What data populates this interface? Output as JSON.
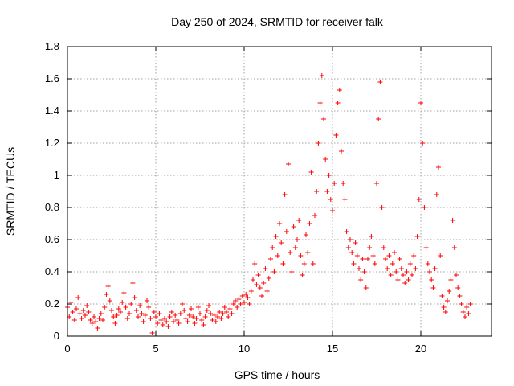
{
  "chart_data": {
    "type": "scatter",
    "title": "Day 250 of 2024, SRMTID for receiver falk",
    "xlabel": "GPS time / hours",
    "ylabel": "SRMTID / TECUs",
    "xlim": [
      0,
      24
    ],
    "ylim": [
      0,
      1.8
    ],
    "xticks": [
      0,
      5,
      10,
      15,
      20
    ],
    "xtick_labels": [
      "0",
      "5",
      "10",
      "15",
      "20"
    ],
    "yticks": [
      0,
      0.2,
      0.4,
      0.6,
      0.8,
      1.0,
      1.2,
      1.4,
      1.6,
      1.8
    ],
    "ytick_labels": [
      "0",
      "0.2",
      "0.4",
      "0.6",
      "0.8",
      "1",
      "1.2",
      "1.4",
      "1.6",
      "1.8"
    ],
    "grid": true,
    "marker": "plus",
    "series": [
      {
        "name": "SRMTID",
        "color": "#ff0000",
        "points": [
          [
            0.0,
            0.18
          ],
          [
            0.1,
            0.12
          ],
          [
            0.2,
            0.21
          ],
          [
            0.3,
            0.15
          ],
          [
            0.4,
            0.1
          ],
          [
            0.5,
            0.17
          ],
          [
            0.6,
            0.24
          ],
          [
            0.7,
            0.14
          ],
          [
            0.8,
            0.11
          ],
          [
            0.9,
            0.16
          ],
          [
            1.0,
            0.13
          ],
          [
            1.1,
            0.19
          ],
          [
            1.2,
            0.15
          ],
          [
            1.3,
            0.1
          ],
          [
            1.4,
            0.08
          ],
          [
            1.5,
            0.12
          ],
          [
            1.6,
            0.09
          ],
          [
            1.7,
            0.05
          ],
          [
            1.8,
            0.11
          ],
          [
            1.9,
            0.14
          ],
          [
            2.0,
            0.1
          ],
          [
            2.1,
            0.18
          ],
          [
            2.2,
            0.26
          ],
          [
            2.3,
            0.31
          ],
          [
            2.4,
            0.22
          ],
          [
            2.5,
            0.16
          ],
          [
            2.6,
            0.12
          ],
          [
            2.7,
            0.08
          ],
          [
            2.8,
            0.13
          ],
          [
            2.9,
            0.17
          ],
          [
            3.0,
            0.15
          ],
          [
            3.1,
            0.21
          ],
          [
            3.2,
            0.27
          ],
          [
            3.3,
            0.18
          ],
          [
            3.4,
            0.11
          ],
          [
            3.5,
            0.14
          ],
          [
            3.6,
            0.2
          ],
          [
            3.7,
            0.33
          ],
          [
            3.8,
            0.24
          ],
          [
            3.9,
            0.16
          ],
          [
            4.0,
            0.12
          ],
          [
            4.1,
            0.19
          ],
          [
            4.2,
            0.14
          ],
          [
            4.3,
            0.09
          ],
          [
            4.4,
            0.13
          ],
          [
            4.5,
            0.22
          ],
          [
            4.6,
            0.18
          ],
          [
            4.7,
            0.11
          ],
          [
            4.8,
            0.02
          ],
          [
            4.9,
            0.15
          ],
          [
            5.0,
            0.12
          ],
          [
            5.1,
            0.08
          ],
          [
            5.2,
            0.14
          ],
          [
            5.3,
            0.1
          ],
          [
            5.4,
            0.07
          ],
          [
            5.5,
            0.11
          ],
          [
            5.6,
            0.09
          ],
          [
            5.7,
            0.06
          ],
          [
            5.8,
            0.12
          ],
          [
            5.9,
            0.15
          ],
          [
            6.0,
            0.09
          ],
          [
            6.1,
            0.13
          ],
          [
            6.2,
            0.1
          ],
          [
            6.3,
            0.08
          ],
          [
            6.4,
            0.14
          ],
          [
            6.5,
            0.2
          ],
          [
            6.6,
            0.16
          ],
          [
            6.7,
            0.11
          ],
          [
            6.8,
            0.09
          ],
          [
            6.9,
            0.13
          ],
          [
            7.0,
            0.17
          ],
          [
            7.1,
            0.12
          ],
          [
            7.2,
            0.08
          ],
          [
            7.3,
            0.11
          ],
          [
            7.4,
            0.18
          ],
          [
            7.5,
            0.14
          ],
          [
            7.6,
            0.1
          ],
          [
            7.7,
            0.07
          ],
          [
            7.8,
            0.12
          ],
          [
            7.9,
            0.16
          ],
          [
            8.0,
            0.19
          ],
          [
            8.1,
            0.14
          ],
          [
            8.2,
            0.1
          ],
          [
            8.3,
            0.13
          ],
          [
            8.4,
            0.09
          ],
          [
            8.5,
            0.12
          ],
          [
            8.6,
            0.15
          ],
          [
            8.7,
            0.11
          ],
          [
            8.8,
            0.14
          ],
          [
            8.9,
            0.18
          ],
          [
            9.0,
            0.15
          ],
          [
            9.1,
            0.12
          ],
          [
            9.2,
            0.17
          ],
          [
            9.3,
            0.14
          ],
          [
            9.4,
            0.2
          ],
          [
            9.5,
            0.22
          ],
          [
            9.6,
            0.18
          ],
          [
            9.7,
            0.23
          ],
          [
            9.8,
            0.2
          ],
          [
            9.9,
            0.25
          ],
          [
            10.0,
            0.21
          ],
          [
            10.1,
            0.26
          ],
          [
            10.2,
            0.24
          ],
          [
            10.3,
            0.2
          ],
          [
            10.4,
            0.28
          ],
          [
            10.5,
            0.35
          ],
          [
            10.6,
            0.45
          ],
          [
            10.7,
            0.32
          ],
          [
            10.8,
            0.38
          ],
          [
            10.9,
            0.3
          ],
          [
            11.0,
            0.25
          ],
          [
            11.1,
            0.33
          ],
          [
            11.2,
            0.42
          ],
          [
            11.3,
            0.28
          ],
          [
            11.4,
            0.36
          ],
          [
            11.5,
            0.48
          ],
          [
            11.6,
            0.55
          ],
          [
            11.7,
            0.4
          ],
          [
            11.8,
            0.62
          ],
          [
            11.9,
            0.5
          ],
          [
            12.0,
            0.7
          ],
          [
            12.1,
            0.58
          ],
          [
            12.2,
            0.45
          ],
          [
            12.3,
            0.88
          ],
          [
            12.4,
            0.65
          ],
          [
            12.5,
            1.07
          ],
          [
            12.6,
            0.52
          ],
          [
            12.7,
            0.4
          ],
          [
            12.8,
            0.68
          ],
          [
            12.9,
            0.55
          ],
          [
            13.0,
            0.6
          ],
          [
            13.1,
            0.72
          ],
          [
            13.2,
            0.5
          ],
          [
            13.3,
            0.38
          ],
          [
            13.4,
            0.45
          ],
          [
            13.5,
            0.63
          ],
          [
            13.6,
            0.52
          ],
          [
            13.7,
            0.7
          ],
          [
            13.8,
            1.02
          ],
          [
            13.9,
            0.45
          ],
          [
            14.0,
            0.75
          ],
          [
            14.1,
            0.9
          ],
          [
            14.2,
            1.2
          ],
          [
            14.3,
            1.45
          ],
          [
            14.4,
            1.62
          ],
          [
            14.5,
            1.35
          ],
          [
            14.6,
            1.1
          ],
          [
            14.7,
            0.9
          ],
          [
            14.8,
            1.0
          ],
          [
            14.9,
            0.85
          ],
          [
            15.0,
            0.78
          ],
          [
            15.1,
            0.95
          ],
          [
            15.2,
            1.25
          ],
          [
            15.3,
            1.45
          ],
          [
            15.4,
            1.53
          ],
          [
            15.5,
            1.15
          ],
          [
            15.6,
            0.95
          ],
          [
            15.7,
            0.85
          ],
          [
            15.8,
            0.65
          ],
          [
            15.9,
            0.55
          ],
          [
            16.0,
            0.6
          ],
          [
            16.1,
            0.52
          ],
          [
            16.2,
            0.45
          ],
          [
            16.3,
            0.58
          ],
          [
            16.4,
            0.5
          ],
          [
            16.5,
            0.42
          ],
          [
            16.6,
            0.35
          ],
          [
            16.7,
            0.48
          ],
          [
            16.8,
            0.4
          ],
          [
            16.9,
            0.3
          ],
          [
            17.0,
            0.48
          ],
          [
            17.1,
            0.55
          ],
          [
            17.2,
            0.62
          ],
          [
            17.3,
            0.5
          ],
          [
            17.4,
            0.45
          ],
          [
            17.5,
            0.95
          ],
          [
            17.6,
            1.35
          ],
          [
            17.7,
            1.58
          ],
          [
            17.8,
            0.8
          ],
          [
            17.9,
            0.55
          ],
          [
            18.0,
            0.48
          ],
          [
            18.1,
            0.42
          ],
          [
            18.2,
            0.5
          ],
          [
            18.3,
            0.38
          ],
          [
            18.4,
            0.45
          ],
          [
            18.5,
            0.52
          ],
          [
            18.6,
            0.4
          ],
          [
            18.7,
            0.35
          ],
          [
            18.8,
            0.48
          ],
          [
            18.9,
            0.42
          ],
          [
            19.0,
            0.38
          ],
          [
            19.1,
            0.33
          ],
          [
            19.2,
            0.4
          ],
          [
            19.3,
            0.35
          ],
          [
            19.4,
            0.45
          ],
          [
            19.5,
            0.38
          ],
          [
            19.6,
            0.5
          ],
          [
            19.7,
            0.42
          ],
          [
            19.8,
            0.62
          ],
          [
            19.9,
            0.85
          ],
          [
            20.0,
            1.45
          ],
          [
            20.1,
            1.2
          ],
          [
            20.2,
            0.8
          ],
          [
            20.3,
            0.55
          ],
          [
            20.4,
            0.45
          ],
          [
            20.5,
            0.4
          ],
          [
            20.6,
            0.35
          ],
          [
            20.7,
            0.3
          ],
          [
            20.8,
            0.42
          ],
          [
            20.9,
            0.88
          ],
          [
            21.0,
            1.05
          ],
          [
            21.1,
            0.5
          ],
          [
            21.2,
            0.25
          ],
          [
            21.3,
            0.18
          ],
          [
            21.4,
            0.15
          ],
          [
            21.5,
            0.22
          ],
          [
            21.6,
            0.28
          ],
          [
            21.7,
            0.35
          ],
          [
            21.8,
            0.72
          ],
          [
            21.9,
            0.55
          ],
          [
            22.0,
            0.38
          ],
          [
            22.1,
            0.3
          ],
          [
            22.2,
            0.25
          ],
          [
            22.3,
            0.2
          ],
          [
            22.4,
            0.15
          ],
          [
            22.5,
            0.12
          ],
          [
            22.6,
            0.18
          ],
          [
            22.7,
            0.14
          ],
          [
            22.8,
            0.2
          ]
        ]
      }
    ]
  }
}
